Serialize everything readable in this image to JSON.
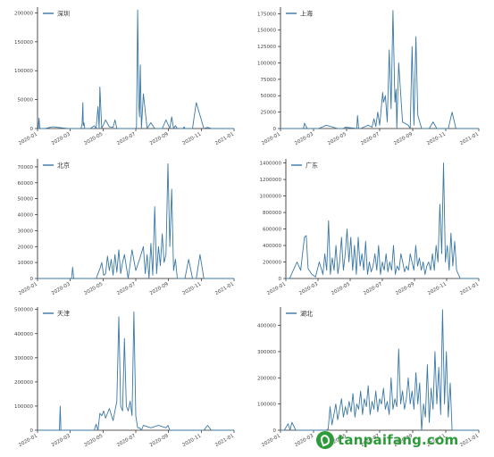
{
  "watermark": {
    "text": "tanpaifang.com"
  },
  "colors": {
    "line": "#3a78a6",
    "axis": "#222222",
    "text": "#444444"
  },
  "chart_data": [
    {
      "type": "line",
      "legend": "深圳",
      "legend_position": "top-left",
      "x_ticks": [
        "2020-01",
        "2020-03",
        "2020-05",
        "2020-07",
        "2020-09",
        "2020-11",
        "2021-01"
      ],
      "y_ticks": [
        0,
        50000,
        100000,
        150000,
        200000
      ],
      "ylim": [
        0,
        210000
      ],
      "x": [
        0,
        2,
        4,
        6,
        10,
        20,
        40,
        80,
        100,
        115,
        118,
        120,
        121,
        123,
        125,
        140,
        150,
        155,
        160,
        163,
        165,
        170,
        180,
        190,
        200,
        205,
        210,
        240,
        250,
        260,
        262,
        265,
        268,
        270,
        272,
        275,
        280,
        290,
        300,
        310,
        320,
        330,
        340,
        350,
        355,
        360,
        365,
        370,
        380,
        382,
        385,
        388,
        390,
        400,
        410,
        420,
        440,
        450,
        460,
        470,
        480,
        485,
        490,
        500,
        510,
        520
      ],
      "y": [
        0,
        0,
        18000,
        0,
        0,
        0,
        3000,
        0,
        0,
        0,
        8000,
        45000,
        5000,
        10000,
        0,
        0,
        5000,
        0,
        38000,
        0,
        72000,
        0,
        15000,
        3000,
        2000,
        15000,
        0,
        0,
        0,
        0,
        3000,
        205000,
        40000,
        20000,
        110000,
        0,
        60000,
        0,
        10000,
        0,
        0,
        0,
        15000,
        0,
        20000,
        0,
        5000,
        0,
        0,
        0,
        0,
        3000,
        0,
        0,
        0,
        45000,
        0,
        2000,
        0,
        0,
        0,
        0,
        0,
        0,
        0,
        0
      ]
    },
    {
      "type": "line",
      "legend": "上海",
      "legend_position": "top-left",
      "x_ticks": [
        "2020-01",
        "2020-03",
        "2020-05",
        "2020-07",
        "2020-09",
        "2020-11",
        "2021-01"
      ],
      "y_ticks": [
        0,
        25000,
        50000,
        75000,
        100000,
        125000,
        150000,
        175000
      ],
      "ylim": [
        0,
        185000
      ],
      "x": [
        0,
        20,
        50,
        60,
        63,
        70,
        100,
        120,
        150,
        160,
        165,
        170,
        200,
        202,
        205,
        210,
        230,
        240,
        245,
        250,
        255,
        260,
        268,
        270,
        275,
        280,
        285,
        290,
        295,
        300,
        303,
        305,
        310,
        320,
        335,
        340,
        345,
        350,
        355,
        360,
        370,
        380,
        390,
        400,
        410,
        420,
        430,
        440,
        450,
        460,
        470,
        480,
        490,
        500,
        510,
        520
      ],
      "y": [
        0,
        0,
        0,
        0,
        8000,
        0,
        0,
        5000,
        0,
        0,
        0,
        2000,
        0,
        20000,
        0,
        0,
        5000,
        2000,
        15000,
        3000,
        25000,
        5000,
        55000,
        40000,
        50000,
        10000,
        120000,
        30000,
        180000,
        40000,
        60000,
        0,
        100000,
        10000,
        5000,
        0,
        125000,
        5000,
        140000,
        20000,
        0,
        0,
        0,
        10000,
        0,
        0,
        0,
        0,
        25000,
        0,
        0,
        0,
        0,
        0,
        0,
        0
      ]
    },
    {
      "type": "line",
      "legend": "北京",
      "legend_position": "top-left",
      "x_ticks": [
        "2020-01",
        "2020-03",
        "2020-05",
        "2020-07",
        "2020-09",
        "2020-11",
        "2021-01"
      ],
      "y_ticks": [
        0,
        10000,
        20000,
        30000,
        40000,
        50000,
        60000,
        70000
      ],
      "ylim": [
        0,
        75000
      ],
      "x": [
        0,
        40,
        60,
        80,
        90,
        93,
        96,
        100,
        120,
        130,
        140,
        150,
        155,
        160,
        165,
        170,
        175,
        180,
        185,
        190,
        195,
        200,
        205,
        210,
        215,
        220,
        225,
        230,
        240,
        250,
        260,
        270,
        280,
        285,
        290,
        295,
        300,
        305,
        310,
        315,
        320,
        325,
        330,
        335,
        340,
        345,
        350,
        355,
        360,
        365,
        370,
        380,
        390,
        400,
        410,
        420,
        430,
        440,
        450,
        460,
        470,
        480,
        490,
        500,
        510,
        520
      ],
      "y": [
        0,
        0,
        0,
        0,
        0,
        7000,
        0,
        0,
        0,
        0,
        0,
        0,
        0,
        3000,
        6000,
        10000,
        2000,
        3000,
        14000,
        5000,
        12000,
        2000,
        15000,
        4000,
        18000,
        3000,
        10000,
        15000,
        0,
        18000,
        5000,
        12000,
        20000,
        3000,
        15000,
        0,
        22000,
        2000,
        45000,
        3000,
        20000,
        8000,
        28000,
        10000,
        15000,
        72000,
        20000,
        56000,
        5000,
        12000,
        0,
        0,
        0,
        12000,
        0,
        0,
        15000,
        0,
        0,
        0,
        0,
        0,
        0,
        0,
        0,
        0
      ]
    },
    {
      "type": "line",
      "legend": "广东",
      "legend_position": "top-left",
      "x_ticks": [
        "2020-01",
        "2020-03",
        "2020-05",
        "2020-07",
        "2020-09",
        "2020-11",
        "2021-01"
      ],
      "y_ticks": [
        0,
        200000,
        400000,
        600000,
        800000,
        1000000,
        1200000,
        1400000
      ],
      "ylim": [
        0,
        1450000
      ],
      "x": [
        0,
        10,
        20,
        30,
        40,
        50,
        55,
        60,
        70,
        80,
        90,
        100,
        105,
        110,
        115,
        120,
        125,
        130,
        135,
        140,
        145,
        150,
        155,
        160,
        165,
        170,
        175,
        180,
        185,
        190,
        195,
        200,
        205,
        210,
        215,
        220,
        225,
        230,
        235,
        240,
        245,
        250,
        255,
        260,
        265,
        270,
        275,
        280,
        285,
        290,
        295,
        300,
        305,
        310,
        315,
        320,
        325,
        330,
        335,
        340,
        345,
        350,
        355,
        360,
        365,
        370,
        375,
        380,
        385,
        390,
        395,
        400,
        405,
        410,
        415,
        420,
        425,
        430,
        435,
        440,
        445,
        450,
        455,
        460,
        465,
        470,
        475,
        480,
        485,
        490,
        495,
        500,
        505,
        510,
        515,
        520
      ],
      "y": [
        0,
        0,
        100000,
        200000,
        100000,
        500000,
        520000,
        120000,
        50000,
        20000,
        200000,
        50000,
        300000,
        100000,
        700000,
        50000,
        250000,
        100000,
        400000,
        60000,
        200000,
        500000,
        100000,
        300000,
        600000,
        200000,
        500000,
        100000,
        400000,
        50000,
        500000,
        150000,
        300000,
        100000,
        450000,
        50000,
        200000,
        80000,
        150000,
        300000,
        100000,
        400000,
        50000,
        200000,
        100000,
        300000,
        80000,
        200000,
        100000,
        400000,
        50000,
        150000,
        100000,
        300000,
        200000,
        80000,
        150000,
        100000,
        300000,
        200000,
        100000,
        400000,
        150000,
        250000,
        100000,
        200000,
        50000,
        150000,
        200000,
        100000,
        300000,
        100000,
        400000,
        200000,
        900000,
        300000,
        1400000,
        200000,
        400000,
        100000,
        550000,
        150000,
        450000,
        100000,
        50000,
        0,
        0,
        0,
        0,
        0,
        0,
        0,
        0,
        0,
        0,
        0
      ]
    },
    {
      "type": "line",
      "legend": "天津",
      "legend_position": "top-left",
      "x_ticks": [
        "2020-01",
        "2020-03",
        "2020-05",
        "2020-07",
        "2020-09",
        "2020-11",
        "2021-01"
      ],
      "y_ticks": [
        0,
        100000,
        200000,
        300000,
        400000,
        500000
      ],
      "ylim": [
        0,
        510000
      ],
      "x": [
        0,
        30,
        58,
        60,
        62,
        90,
        150,
        155,
        160,
        165,
        170,
        175,
        180,
        190,
        200,
        210,
        215,
        220,
        225,
        230,
        235,
        240,
        245,
        250,
        255,
        260,
        265,
        270,
        275,
        280,
        300,
        320,
        340,
        345,
        350,
        400,
        420,
        440,
        450,
        460,
        470,
        480,
        490,
        500,
        510,
        520
      ],
      "y": [
        0,
        0,
        0,
        100000,
        0,
        0,
        0,
        25000,
        0,
        70000,
        60000,
        80000,
        50000,
        90000,
        40000,
        120000,
        470000,
        100000,
        80000,
        380000,
        100000,
        80000,
        120000,
        60000,
        490000,
        60000,
        10000,
        10000,
        0,
        20000,
        10000,
        20000,
        10000,
        20000,
        0,
        0,
        0,
        0,
        20000,
        0,
        0,
        0,
        0,
        0,
        0,
        0
      ]
    },
    {
      "type": "line",
      "legend": "湖北",
      "legend_position": "top-left",
      "x_ticks": [
        "2020-01",
        "2020-03",
        "2020-05",
        "2020-07",
        "2020-09",
        "2020-11",
        "2021-01"
      ],
      "y_ticks": [
        0,
        100000,
        200000,
        300000,
        400000
      ],
      "ylim": [
        0,
        470000
      ],
      "x": [
        0,
        10,
        20,
        25,
        30,
        40,
        60,
        90,
        100,
        105,
        110,
        115,
        120,
        125,
        130,
        135,
        140,
        145,
        150,
        155,
        160,
        165,
        170,
        175,
        180,
        185,
        190,
        195,
        200,
        205,
        210,
        215,
        220,
        225,
        230,
        235,
        240,
        245,
        250,
        255,
        260,
        265,
        270,
        275,
        280,
        285,
        290,
        295,
        300,
        305,
        310,
        315,
        320,
        325,
        330,
        335,
        340,
        345,
        350,
        355,
        360,
        365,
        370,
        375,
        380,
        385,
        390,
        395,
        400,
        405,
        410,
        415,
        420,
        425,
        430,
        435,
        440,
        445,
        450,
        455,
        460,
        465,
        470,
        475,
        480,
        485,
        490,
        495,
        500,
        505,
        510,
        515,
        520
      ],
      "y": [
        0,
        0,
        25000,
        0,
        30000,
        0,
        0,
        0,
        0,
        0,
        0,
        0,
        0,
        5000,
        90000,
        20000,
        60000,
        100000,
        40000,
        80000,
        120000,
        50000,
        90000,
        60000,
        110000,
        70000,
        140000,
        50000,
        100000,
        80000,
        150000,
        60000,
        120000,
        90000,
        170000,
        60000,
        110000,
        80000,
        150000,
        70000,
        120000,
        100000,
        160000,
        80000,
        110000,
        60000,
        200000,
        80000,
        120000,
        90000,
        310000,
        100000,
        150000,
        80000,
        120000,
        200000,
        100000,
        150000,
        80000,
        220000,
        100000,
        180000,
        0,
        100000,
        50000,
        250000,
        30000,
        160000,
        80000,
        300000,
        100000,
        240000,
        60000,
        460000,
        100000,
        300000,
        50000,
        180000,
        0,
        0,
        0,
        0,
        0,
        0,
        0,
        0,
        0,
        0,
        0,
        0,
        0,
        0,
        0
      ]
    }
  ]
}
